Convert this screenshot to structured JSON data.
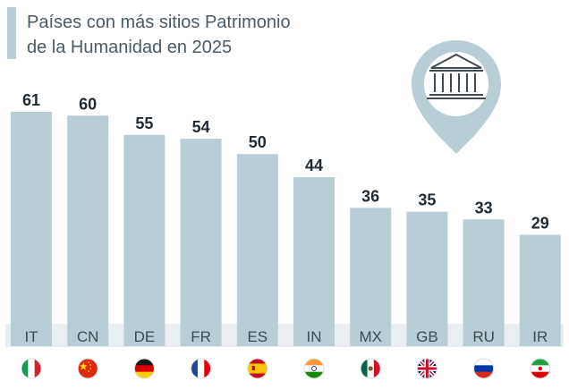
{
  "title": {
    "line1": "Países con más sitios Patrimonio",
    "line2": "de la Humanidad en 2025"
  },
  "colors": {
    "bar": "#b9cdd6",
    "value_text": "#1f2a33",
    "code_text": "#3f4a52",
    "title_text": "#4a5b66",
    "accent_bar": "#b9cdd6",
    "pin": "#b9cdd6",
    "base_strip": "#e9eef1"
  },
  "icon": {
    "name": "museum-pin-icon"
  },
  "chart_data": {
    "type": "bar",
    "title": "Países con más sitios Patrimonio de la Humanidad en 2025",
    "xlabel": "",
    "ylabel": "",
    "categories": [
      "IT",
      "CN",
      "DE",
      "FR",
      "ES",
      "IN",
      "MX",
      "GB",
      "RU",
      "IR"
    ],
    "values": [
      61,
      60,
      55,
      54,
      50,
      44,
      36,
      35,
      33,
      29
    ],
    "data_labels": [
      "61",
      "60",
      "55",
      "54",
      "50",
      "44",
      "36",
      "35",
      "33",
      "29"
    ],
    "flags": [
      "italy-flag-icon",
      "china-flag-icon",
      "germany-flag-icon",
      "france-flag-icon",
      "spain-flag-icon",
      "india-flag-icon",
      "mexico-flag-icon",
      "uk-flag-icon",
      "russia-flag-icon",
      "iran-flag-icon"
    ],
    "ylim": [
      0,
      61
    ],
    "grid": false,
    "legend": "none"
  }
}
